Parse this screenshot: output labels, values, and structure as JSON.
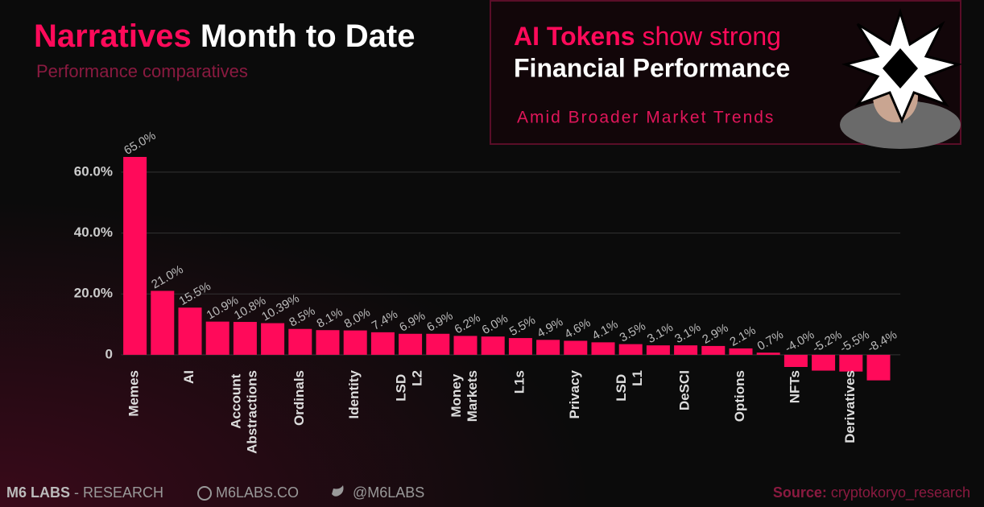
{
  "chart_data": {
    "type": "bar",
    "title_highlight": "Narratives",
    "title_rest": "Month to Date",
    "subtitle": "Performance comparatives",
    "categories": [
      "Memes",
      null,
      "AI",
      null,
      "Account Abstractions",
      null,
      "Ordinals",
      null,
      "Identity",
      null,
      "LSD L2",
      null,
      "Money Markets",
      null,
      "L1s",
      null,
      "Privacy",
      null,
      "LSD L1",
      null,
      "DeSCI",
      null,
      "Options",
      null,
      "NFTs",
      null,
      "Derivatives",
      null
    ],
    "values": [
      65.0,
      21.0,
      15.5,
      10.9,
      10.8,
      10.39,
      8.5,
      8.1,
      8.0,
      7.4,
      6.9,
      6.9,
      6.2,
      6.0,
      5.5,
      4.9,
      4.6,
      4.1,
      3.5,
      3.1,
      3.1,
      2.9,
      2.1,
      0.7,
      -4.0,
      -5.2,
      -5.5,
      -8.4
    ],
    "value_labels": [
      "65.0%",
      "21.0%",
      "15.5%",
      "10.9%",
      "10.8%",
      "10.39%",
      "8.5%",
      "8.1%",
      "8.0%",
      "7.4%",
      "6.9%",
      "6.9%",
      "6.2%",
      "6.0%",
      "5.5%",
      "4.9%",
      "4.6%",
      "4.1%",
      "3.5%",
      "3.1%",
      "3.1%",
      "2.9%",
      "2.1%",
      "0.7%",
      "-4.0%",
      "-5.2%",
      "-5.5%",
      "-8.4%"
    ],
    "color": "#ff0a5a",
    "ylim": [
      -10,
      65
    ],
    "yticks": [
      0,
      {
        "value": 20,
        "label": "20.0%"
      },
      {
        "value": 40,
        "label": "40.0%"
      },
      {
        "value": 60,
        "label": "60.0%"
      }
    ],
    "grid": true
  },
  "banner": {
    "highlight": "AI Tokens",
    "line1_rest": "show strong",
    "line2": "Financial Performance",
    "tagline": "Amid Broader Market Trends"
  },
  "footer": {
    "brand": "M6 LABS",
    "brand_rest": "- RESEARCH",
    "website": "M6LABS.CO",
    "handle": "@M6LABS",
    "source_label": "Source:",
    "source": "cryptokoryo_research"
  }
}
